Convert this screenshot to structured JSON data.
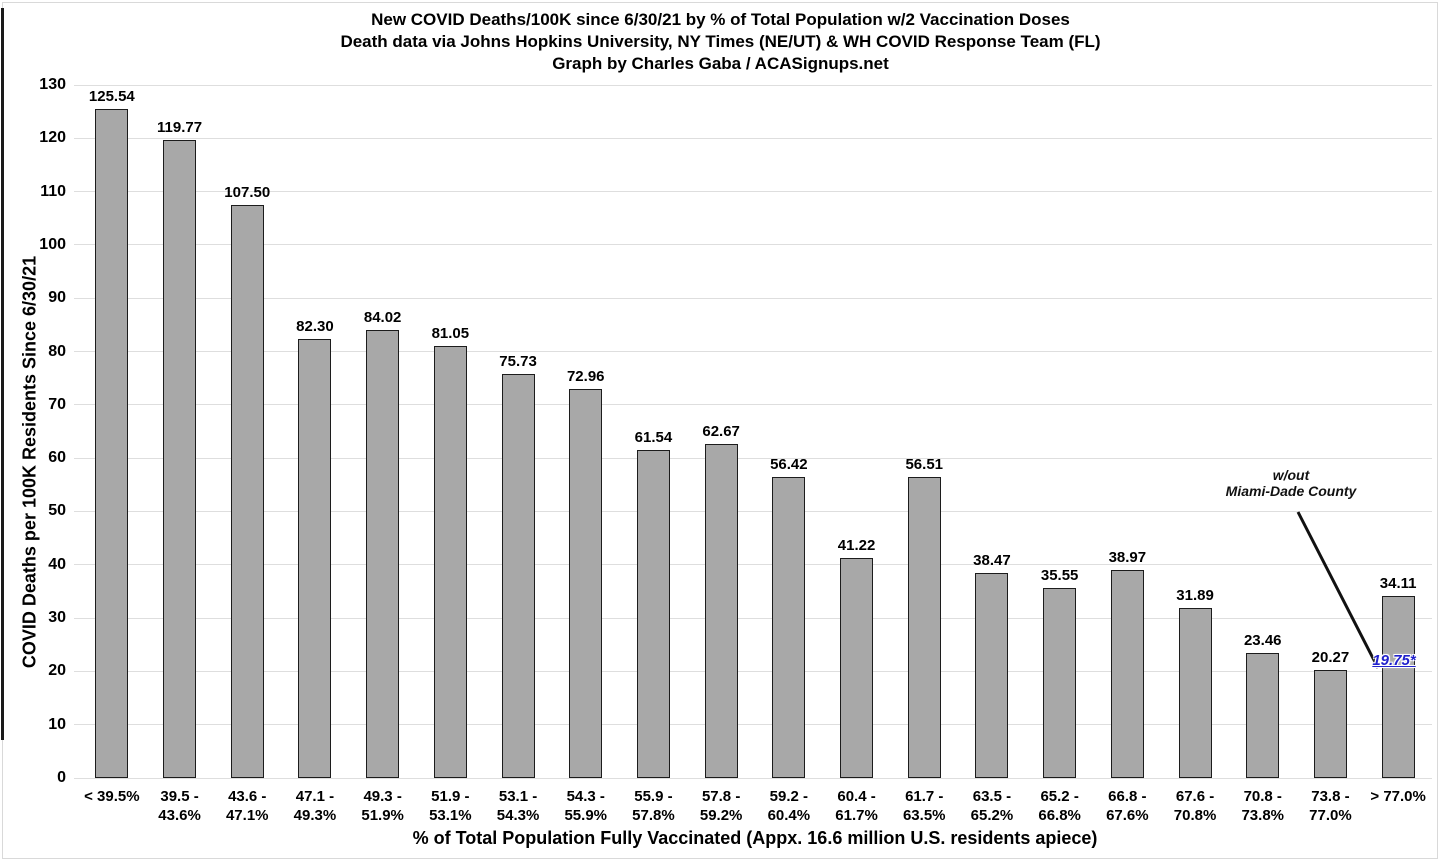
{
  "header": {
    "title_line1": "New COVID Deaths/100K since 6/30/21 by % of Total Population w/2 Vaccination Doses",
    "title_line2": "Death data via Johns Hopkins University, NY Times (NE/UT) & WH COVID Response Team (FL)",
    "title_line3": "Graph by Charles Gaba / ACASignups.net"
  },
  "axes": {
    "y_title": "COVID Deaths per 100K Residents Since 6/30/21",
    "x_title": "% of Total Population Fully Vaccinated (Appx. 16.6 million U.S. residents apiece)"
  },
  "annotation": {
    "line1": "w/out",
    "line2": "Miami-Dade County",
    "value": "19.75*"
  },
  "colors": {
    "bar_fill": "#a8a8a8",
    "bar_border": "#1c1c1c",
    "gridline": "#dedede",
    "annotation_blue": "#2222cc",
    "text": "#000000"
  },
  "chart_data": {
    "type": "bar",
    "title": "New COVID Deaths/100K since 6/30/21 by % of Total Population w/2 Vaccination Doses",
    "subtitle": "Death data via Johns Hopkins University, NY Times (NE/UT) & WH COVID Response Team (FL) — Graph by Charles Gaba / ACASignups.net",
    "xlabel": "% of Total Population Fully Vaccinated (Appx. 16.6 million U.S. residents apiece)",
    "ylabel": "COVID Deaths per 100K Residents Since 6/30/21",
    "ylim": [
      0,
      130
    ],
    "ytick_step": 10,
    "grid": true,
    "legend": false,
    "categories": [
      "< 39.5%",
      "39.5 - 43.6%",
      "43.6 - 47.1%",
      "47.1 - 49.3%",
      "49.3 - 51.9%",
      "51.9 - 53.1%",
      "53.1 - 54.3%",
      "54.3 - 55.9%",
      "55.9 - 57.8%",
      "57.8 - 59.2%",
      "59.2 - 60.4%",
      "60.4 - 61.7%",
      "61.7 - 63.5%",
      "63.5 - 65.2%",
      "65.2 - 66.8%",
      "66.8 - 67.6%",
      "67.6 - 70.8%",
      "70.8 - 73.8%",
      "73.8 - 77.0%",
      "> 77.0%"
    ],
    "values": [
      125.54,
      119.77,
      107.5,
      82.3,
      84.02,
      81.05,
      75.73,
      72.96,
      61.54,
      62.67,
      56.42,
      41.22,
      56.51,
      38.47,
      35.55,
      38.97,
      31.89,
      23.46,
      20.27,
      34.11
    ],
    "labels": [
      "125.54",
      "119.77",
      "107.50",
      "82.30",
      "84.02",
      "81.05",
      "75.73",
      "72.96",
      "61.54",
      "62.67",
      "56.42",
      "41.22",
      "56.51",
      "38.47",
      "35.55",
      "38.97",
      "31.89",
      "23.46",
      "20.27",
      "34.11"
    ],
    "annotations": [
      {
        "text": "w/out Miami-Dade County",
        "value_label": "19.75*",
        "applies_to_category": "> 77.0%"
      }
    ]
  }
}
